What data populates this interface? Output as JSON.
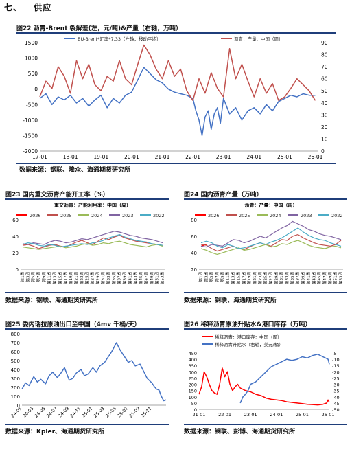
{
  "section": {
    "number": "七、",
    "title": "供应"
  },
  "figures": [
    {
      "id": "f22",
      "title": "图22  沥青-Brent 裂解差(左，元/吨)&产量（右轴，万吨）",
      "source": "数据来源：钢联、隆众、海通期货研究所"
    },
    {
      "id": "f23",
      "title": "图23  国内重交沥青产能开工率（%）",
      "source": "数据来源：钢联、海通期货研究所"
    },
    {
      "id": "f24",
      "title": "图24  国内沥青产量（万吨）",
      "source": "数据来源：钢联、海通期货研究所"
    },
    {
      "id": "f25",
      "title": "图25  委内瑞拉原油出口至中国（4mv 千桶/天）",
      "source": "数据来源：Kpler、海通期货研究所"
    },
    {
      "id": "f26",
      "title": "图26  稀释沥青原油升贴水&港口库存（万吨）",
      "source": "数据来源：钢联、彭博、海通期货研究所"
    }
  ],
  "chart_data": [
    {
      "id": "c22",
      "type": "line",
      "title": "",
      "x_ticks": [
        "17-01",
        "18-01",
        "19-01",
        "20-01",
        "21-01",
        "22-01",
        "23-01",
        "24-01",
        "25-01",
        "26-01"
      ],
      "x_range": [
        2017.0,
        2026.1
      ],
      "y_left": {
        "min": -2000,
        "max": 1500,
        "ticks": [
          "-2000",
          "-1500",
          "-1000",
          "-500",
          "0",
          "500",
          "1000",
          "1500"
        ]
      },
      "y_right": {
        "min": 0,
        "max": 90,
        "ticks": [
          "0",
          "10",
          "20",
          "30",
          "40",
          "50",
          "60",
          "70",
          "80",
          "90"
        ]
      },
      "legend_position": "top",
      "series": [
        {
          "name": "BU-Brent*汇率*7.33（左轴，移动平均）",
          "axis": "left",
          "color": "#4472c4",
          "x": [
            2017.0,
            2017.2,
            2017.4,
            2017.6,
            2017.8,
            2018.0,
            2018.2,
            2018.4,
            2018.6,
            2018.8,
            2019.0,
            2019.2,
            2019.4,
            2019.6,
            2019.8,
            2020.0,
            2020.2,
            2020.4,
            2020.6,
            2020.8,
            2021.0,
            2021.2,
            2021.4,
            2021.6,
            2021.8,
            2022.0,
            2022.1,
            2022.2,
            2022.3,
            2022.4,
            2022.5,
            2022.6,
            2022.7,
            2022.8,
            2022.9,
            2023.0,
            2023.2,
            2023.4,
            2023.6,
            2023.8,
            2024.0,
            2024.2,
            2024.4,
            2024.6,
            2024.8,
            2025.0,
            2025.2,
            2025.4,
            2025.6,
            2025.8,
            2026.0
          ],
          "y": [
            -300,
            -150,
            -500,
            -250,
            -350,
            -200,
            -450,
            -300,
            -550,
            -350,
            -200,
            -600,
            -300,
            -450,
            -200,
            -100,
            300,
            700,
            500,
            300,
            200,
            0,
            -100,
            -150,
            -200,
            -300,
            -700,
            -1000,
            -1500,
            -900,
            -700,
            -1300,
            -800,
            -600,
            -1100,
            -300,
            -800,
            -600,
            -1000,
            -700,
            -600,
            -800,
            -500,
            -700,
            -400,
            -300,
            -200,
            -250,
            -150,
            -200,
            -200
          ]
        },
        {
          "name": "沥青：产量：中国（周）",
          "axis": "right",
          "color": "#c0504d",
          "x": [
            2017.0,
            2017.2,
            2017.4,
            2017.6,
            2017.8,
            2018.0,
            2018.2,
            2018.4,
            2018.6,
            2018.8,
            2019.0,
            2019.2,
            2019.4,
            2019.6,
            2019.8,
            2020.0,
            2020.2,
            2020.4,
            2020.6,
            2020.8,
            2021.0,
            2021.2,
            2021.4,
            2021.6,
            2021.8,
            2022.0,
            2022.2,
            2022.4,
            2022.6,
            2022.8,
            2023.0,
            2023.2,
            2023.4,
            2023.6,
            2023.8,
            2024.0,
            2024.2,
            2024.4,
            2024.6,
            2024.8,
            2025.0,
            2025.2,
            2025.4,
            2025.6,
            2025.8,
            2026.0
          ],
          "y": [
            45,
            58,
            52,
            70,
            62,
            48,
            75,
            60,
            72,
            55,
            50,
            62,
            58,
            75,
            60,
            55,
            72,
            88,
            80,
            68,
            60,
            75,
            62,
            68,
            50,
            42,
            60,
            48,
            65,
            52,
            45,
            85,
            60,
            72,
            58,
            45,
            60,
            48,
            56,
            42,
            45,
            52,
            60,
            55,
            50,
            42
          ]
        }
      ]
    },
    {
      "id": "c23",
      "type": "line",
      "title": "重交沥青：产能利用率：中国（周）",
      "x_ticks": [
        "第1周",
        "第3周",
        "第5周",
        "第7周",
        "第9周",
        "第11周",
        "第13周",
        "第15周",
        "第17周",
        "第19周",
        "第21周",
        "第23周",
        "第25周",
        "第27周",
        "第29周",
        "第31周",
        "第33周",
        "第35周",
        "第37周",
        "第39周",
        "第41周",
        "第43周",
        "第45周",
        "第47周",
        "第49周",
        "第51周",
        "第53周"
      ],
      "y": {
        "min": 0,
        "max": 60,
        "ticks": [
          "0",
          "20",
          "40",
          "60"
        ]
      },
      "legend_position": "top",
      "series": [
        {
          "name": "2026",
          "color": "#ff0000",
          "values": [
            29,
            30
          ]
        },
        {
          "name": "2025",
          "color": "#c0504d",
          "values": [
            29,
            30,
            28,
            25,
            27,
            29,
            30,
            28,
            27,
            30,
            33,
            35,
            32,
            30,
            34,
            38,
            36,
            39,
            41,
            38,
            36,
            34,
            33,
            32,
            31,
            30,
            29
          ]
        },
        {
          "name": "2024",
          "color": "#9bbb59",
          "values": [
            27,
            26,
            25,
            24,
            25,
            26,
            27,
            28,
            26,
            27,
            28,
            30,
            31,
            29,
            30,
            32,
            31,
            33,
            34,
            32,
            30,
            29,
            28,
            27,
            29,
            30,
            28
          ]
        },
        {
          "name": "2023",
          "color": "#8064a2",
          "values": [
            31,
            30,
            32,
            31,
            30,
            33,
            35,
            34,
            32,
            33,
            35,
            37,
            36,
            38,
            40,
            42,
            44,
            46,
            45,
            43,
            41,
            40,
            38,
            37,
            36,
            34,
            32
          ]
        },
        {
          "name": "2022",
          "color": "#4bacc6",
          "values": [
            30,
            32,
            31,
            29,
            28,
            30,
            29,
            27,
            28,
            29,
            30,
            31,
            30,
            32,
            33,
            35,
            38,
            40,
            42,
            39,
            37,
            35,
            34,
            33,
            31,
            30,
            29
          ]
        }
      ]
    },
    {
      "id": "c24",
      "type": "line",
      "title": "沥青：产量：中国（周）",
      "x_ticks": [
        "第1周",
        "第3周",
        "第5周",
        "第7周",
        "第9周",
        "第11周",
        "第13周",
        "第15周",
        "第17周",
        "第19周",
        "第21周",
        "第23周",
        "第25周",
        "第27周",
        "第29周",
        "第31周",
        "第33周",
        "第35周",
        "第37周",
        "第39周",
        "第41周",
        "第43周",
        "第45周",
        "第47周",
        "第49周",
        "第51周",
        "第53周"
      ],
      "y": {
        "min": 20,
        "max": 80,
        "ticks": [
          "20",
          "40",
          "60",
          "80"
        ]
      },
      "legend_position": "top",
      "series": [
        {
          "name": "2026",
          "color": "#ff0000",
          "values": [
            48,
            50
          ]
        },
        {
          "name": "2025",
          "color": "#c0504d",
          "values": [
            50,
            49,
            45,
            42,
            44,
            46,
            48,
            45,
            44,
            47,
            50,
            52,
            50,
            48,
            52,
            56,
            55,
            60,
            62,
            58,
            55,
            52,
            50,
            49,
            48,
            50,
            55
          ]
        },
        {
          "name": "2024",
          "color": "#9bbb59",
          "values": [
            45,
            43,
            40,
            38,
            40,
            42,
            44,
            46,
            43,
            44,
            46,
            48,
            50,
            47,
            48,
            51,
            50,
            53,
            55,
            52,
            49,
            47,
            46,
            45,
            47,
            48,
            46
          ]
        },
        {
          "name": "2023",
          "color": "#8064a2",
          "values": [
            48,
            47,
            50,
            49,
            48,
            52,
            56,
            55,
            52,
            54,
            57,
            60,
            58,
            62,
            66,
            70,
            73,
            78,
            75,
            72,
            68,
            66,
            63,
            61,
            60,
            58,
            56
          ]
        },
        {
          "name": "2022",
          "color": "#4bacc6",
          "values": [
            52,
            54,
            52,
            48,
            46,
            50,
            48,
            45,
            46,
            48,
            50,
            52,
            50,
            53,
            55,
            58,
            62,
            66,
            70,
            65,
            61,
            58,
            56,
            55,
            52,
            50,
            48
          ]
        }
      ]
    },
    {
      "id": "c25",
      "type": "line",
      "title": "",
      "x_ticks": [
        "24-01",
        "24-03",
        "24-05",
        "24-07",
        "24-09",
        "24-11",
        "25-01",
        "25-03",
        "25-05",
        "25-07",
        "25-09",
        "25-11"
      ],
      "y": {
        "min": 0,
        "max": 800,
        "ticks": [
          "0",
          "100",
          "200",
          "300",
          "400",
          "500",
          "600",
          "700",
          "800"
        ]
      },
      "series": [
        {
          "name": "",
          "color": "#4472c4",
          "x": [
            0,
            0.3,
            0.6,
            1,
            1.3,
            1.6,
            2,
            2.3,
            2.6,
            3,
            3.3,
            3.6,
            4,
            4.3,
            4.6,
            5,
            5.3,
            5.6,
            6,
            6.3,
            6.6,
            7,
            7.2,
            7.4,
            7.6,
            7.8,
            8,
            8.3,
            8.6,
            9,
            9.3,
            9.6,
            10,
            10.3,
            10.6,
            11,
            11.2,
            11.4,
            11.6,
            11.8,
            12,
            12.2
          ],
          "y": [
            180,
            250,
            220,
            320,
            260,
            290,
            240,
            330,
            370,
            310,
            360,
            420,
            280,
            300,
            360,
            400,
            330,
            350,
            420,
            370,
            440,
            480,
            520,
            560,
            600,
            650,
            700,
            620,
            560,
            480,
            500,
            440,
            460,
            380,
            300,
            250,
            210,
            180,
            170,
            100,
            50,
            60
          ]
        }
      ]
    },
    {
      "id": "c26",
      "type": "line",
      "title": "",
      "x_ticks": [
        "21-01",
        "22-01",
        "23-01",
        "24-01",
        "25-01",
        "26-01"
      ],
      "y_left": {
        "min": 0,
        "max": 450,
        "ticks": [
          "0",
          "50",
          "100",
          "150",
          "200",
          "250",
          "300",
          "350",
          "400",
          "450"
        ]
      },
      "y_right": {
        "min": -50,
        "max": -5,
        "ticks": [
          "-5",
          "-10",
          "-15",
          "-20",
          "-25",
          "-30",
          "-35",
          "-40",
          "-45",
          "-50"
        ]
      },
      "legend_position": "top-left",
      "series": [
        {
          "name": "稀释沥青：港口库存：中国（周）",
          "axis": "left",
          "color": "#ff0000",
          "x": [
            0,
            0.1,
            0.2,
            0.3,
            0.4,
            0.5,
            0.6,
            0.7,
            0.8,
            0.9,
            1,
            1.1,
            1.2,
            1.3,
            1.4,
            1.5,
            1.6,
            1.8,
            2,
            2.2,
            2.4,
            2.6,
            2.8,
            3,
            3.2,
            3.4,
            3.6,
            3.8,
            4,
            4.2,
            4.4,
            4.6,
            4.8,
            4.95,
            5,
            5.05
          ],
          "y": [
            120,
            180,
            300,
            260,
            200,
            150,
            130,
            120,
            200,
            330,
            260,
            300,
            200,
            150,
            180,
            200,
            170,
            150,
            140,
            120,
            110,
            90,
            80,
            75,
            70,
            60,
            55,
            50,
            45,
            40,
            38,
            35,
            40,
            50,
            75,
            55
          ]
        },
        {
          "name": "稀释沥青升贴水（右轴，美元/桶）",
          "axis": "right",
          "color": "#4472c4",
          "x": [
            1.6,
            1.7,
            1.8,
            1.9,
            2,
            2.2,
            2.4,
            2.6,
            2.8,
            3,
            3.2,
            3.4,
            3.6,
            3.8,
            4,
            4.2,
            4.4,
            4.6,
            4.8,
            5,
            5.05
          ],
          "y": [
            -45,
            -40,
            -38,
            -35,
            -30,
            -28,
            -24,
            -20,
            -16,
            -14,
            -12,
            -10,
            -11,
            -10,
            -8,
            -9,
            -7,
            -6,
            -8,
            -10,
            -14
          ]
        }
      ]
    }
  ]
}
